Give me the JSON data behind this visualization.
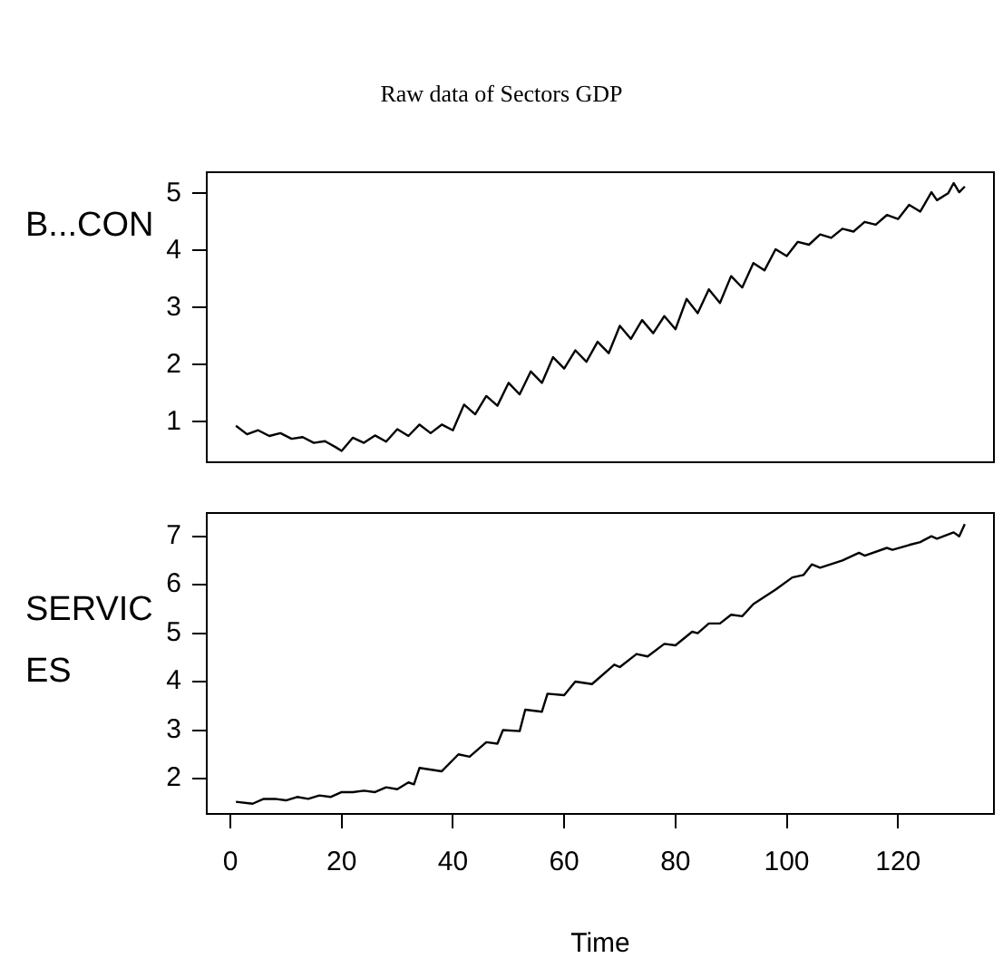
{
  "chart_data": [
    {
      "type": "line",
      "title": "Raw data of Sectors GDP",
      "ylabel": "B...CON",
      "xlim": [
        -4.24,
        137.24
      ],
      "ylim": [
        0.29,
        5.37
      ],
      "yticks": [
        1,
        2,
        3,
        4,
        5
      ],
      "tick_labels": "y",
      "grid": false,
      "legend": false,
      "series": [
        {
          "color": "#000000",
          "x": [
            1,
            3,
            5,
            7,
            9,
            11,
            13,
            15,
            17,
            19,
            20,
            22,
            24,
            26,
            28,
            30,
            32,
            34,
            36,
            38,
            40,
            42,
            44,
            46,
            48,
            50,
            52,
            54,
            56,
            58,
            60,
            62,
            64,
            66,
            68,
            70,
            72,
            74,
            76,
            78,
            80,
            82,
            84,
            86,
            88,
            90,
            92,
            94,
            96,
            98,
            100,
            102,
            104,
            106,
            108,
            110,
            112,
            114,
            116,
            118,
            120,
            122,
            124,
            126,
            127,
            129,
            130,
            131,
            132
          ],
          "values": [
            0.93,
            0.78,
            0.85,
            0.75,
            0.8,
            0.7,
            0.73,
            0.63,
            0.66,
            0.55,
            0.49,
            0.72,
            0.63,
            0.76,
            0.65,
            0.87,
            0.75,
            0.95,
            0.8,
            0.95,
            0.85,
            1.3,
            1.13,
            1.45,
            1.28,
            1.68,
            1.48,
            1.88,
            1.68,
            2.13,
            1.93,
            2.25,
            2.05,
            2.4,
            2.2,
            2.68,
            2.45,
            2.78,
            2.55,
            2.85,
            2.62,
            3.15,
            2.9,
            3.32,
            3.08,
            3.55,
            3.35,
            3.78,
            3.65,
            4.02,
            3.9,
            4.15,
            4.1,
            4.28,
            4.22,
            4.38,
            4.33,
            4.5,
            4.45,
            4.62,
            4.55,
            4.8,
            4.68,
            5.02,
            4.88,
            5.0,
            5.18,
            5.02,
            5.12
          ]
        }
      ]
    },
    {
      "type": "line",
      "ylabel": "SERVICES",
      "xlabel": "Time",
      "xlim": [
        -4.24,
        137.24
      ],
      "xticks": [
        0,
        20,
        40,
        60,
        80,
        100,
        120
      ],
      "ylim": [
        1.27,
        7.48
      ],
      "yticks": [
        2,
        3,
        4,
        5,
        6,
        7
      ],
      "grid": false,
      "legend": false,
      "series": [
        {
          "color": "#000000",
          "x": [
            1,
            4,
            6,
            8,
            10,
            12,
            14,
            16,
            18,
            20,
            22,
            24,
            26,
            28,
            30,
            32,
            33,
            34,
            38,
            41,
            43,
            46,
            48,
            49,
            52,
            53,
            56,
            57,
            60,
            62,
            65,
            69,
            70,
            73,
            75,
            78,
            80,
            83,
            84,
            86,
            88,
            90,
            92,
            94,
            96,
            98,
            101,
            103,
            104.5,
            106,
            110,
            113,
            114,
            118,
            119,
            122,
            124,
            126,
            127,
            130,
            131,
            132
          ],
          "values": [
            1.52,
            1.48,
            1.58,
            1.58,
            1.55,
            1.62,
            1.58,
            1.65,
            1.62,
            1.72,
            1.72,
            1.75,
            1.72,
            1.82,
            1.78,
            1.92,
            1.88,
            2.22,
            2.15,
            2.5,
            2.45,
            2.75,
            2.72,
            3.0,
            2.98,
            3.42,
            3.38,
            3.75,
            3.72,
            4.0,
            3.95,
            4.35,
            4.3,
            4.57,
            4.52,
            4.78,
            4.75,
            5.03,
            5.0,
            5.2,
            5.2,
            5.38,
            5.35,
            5.6,
            5.75,
            5.9,
            6.15,
            6.2,
            6.42,
            6.35,
            6.5,
            6.66,
            6.6,
            6.76,
            6.72,
            6.82,
            6.88,
            7.0,
            6.95,
            7.08,
            7.0,
            7.25
          ]
        }
      ]
    }
  ]
}
